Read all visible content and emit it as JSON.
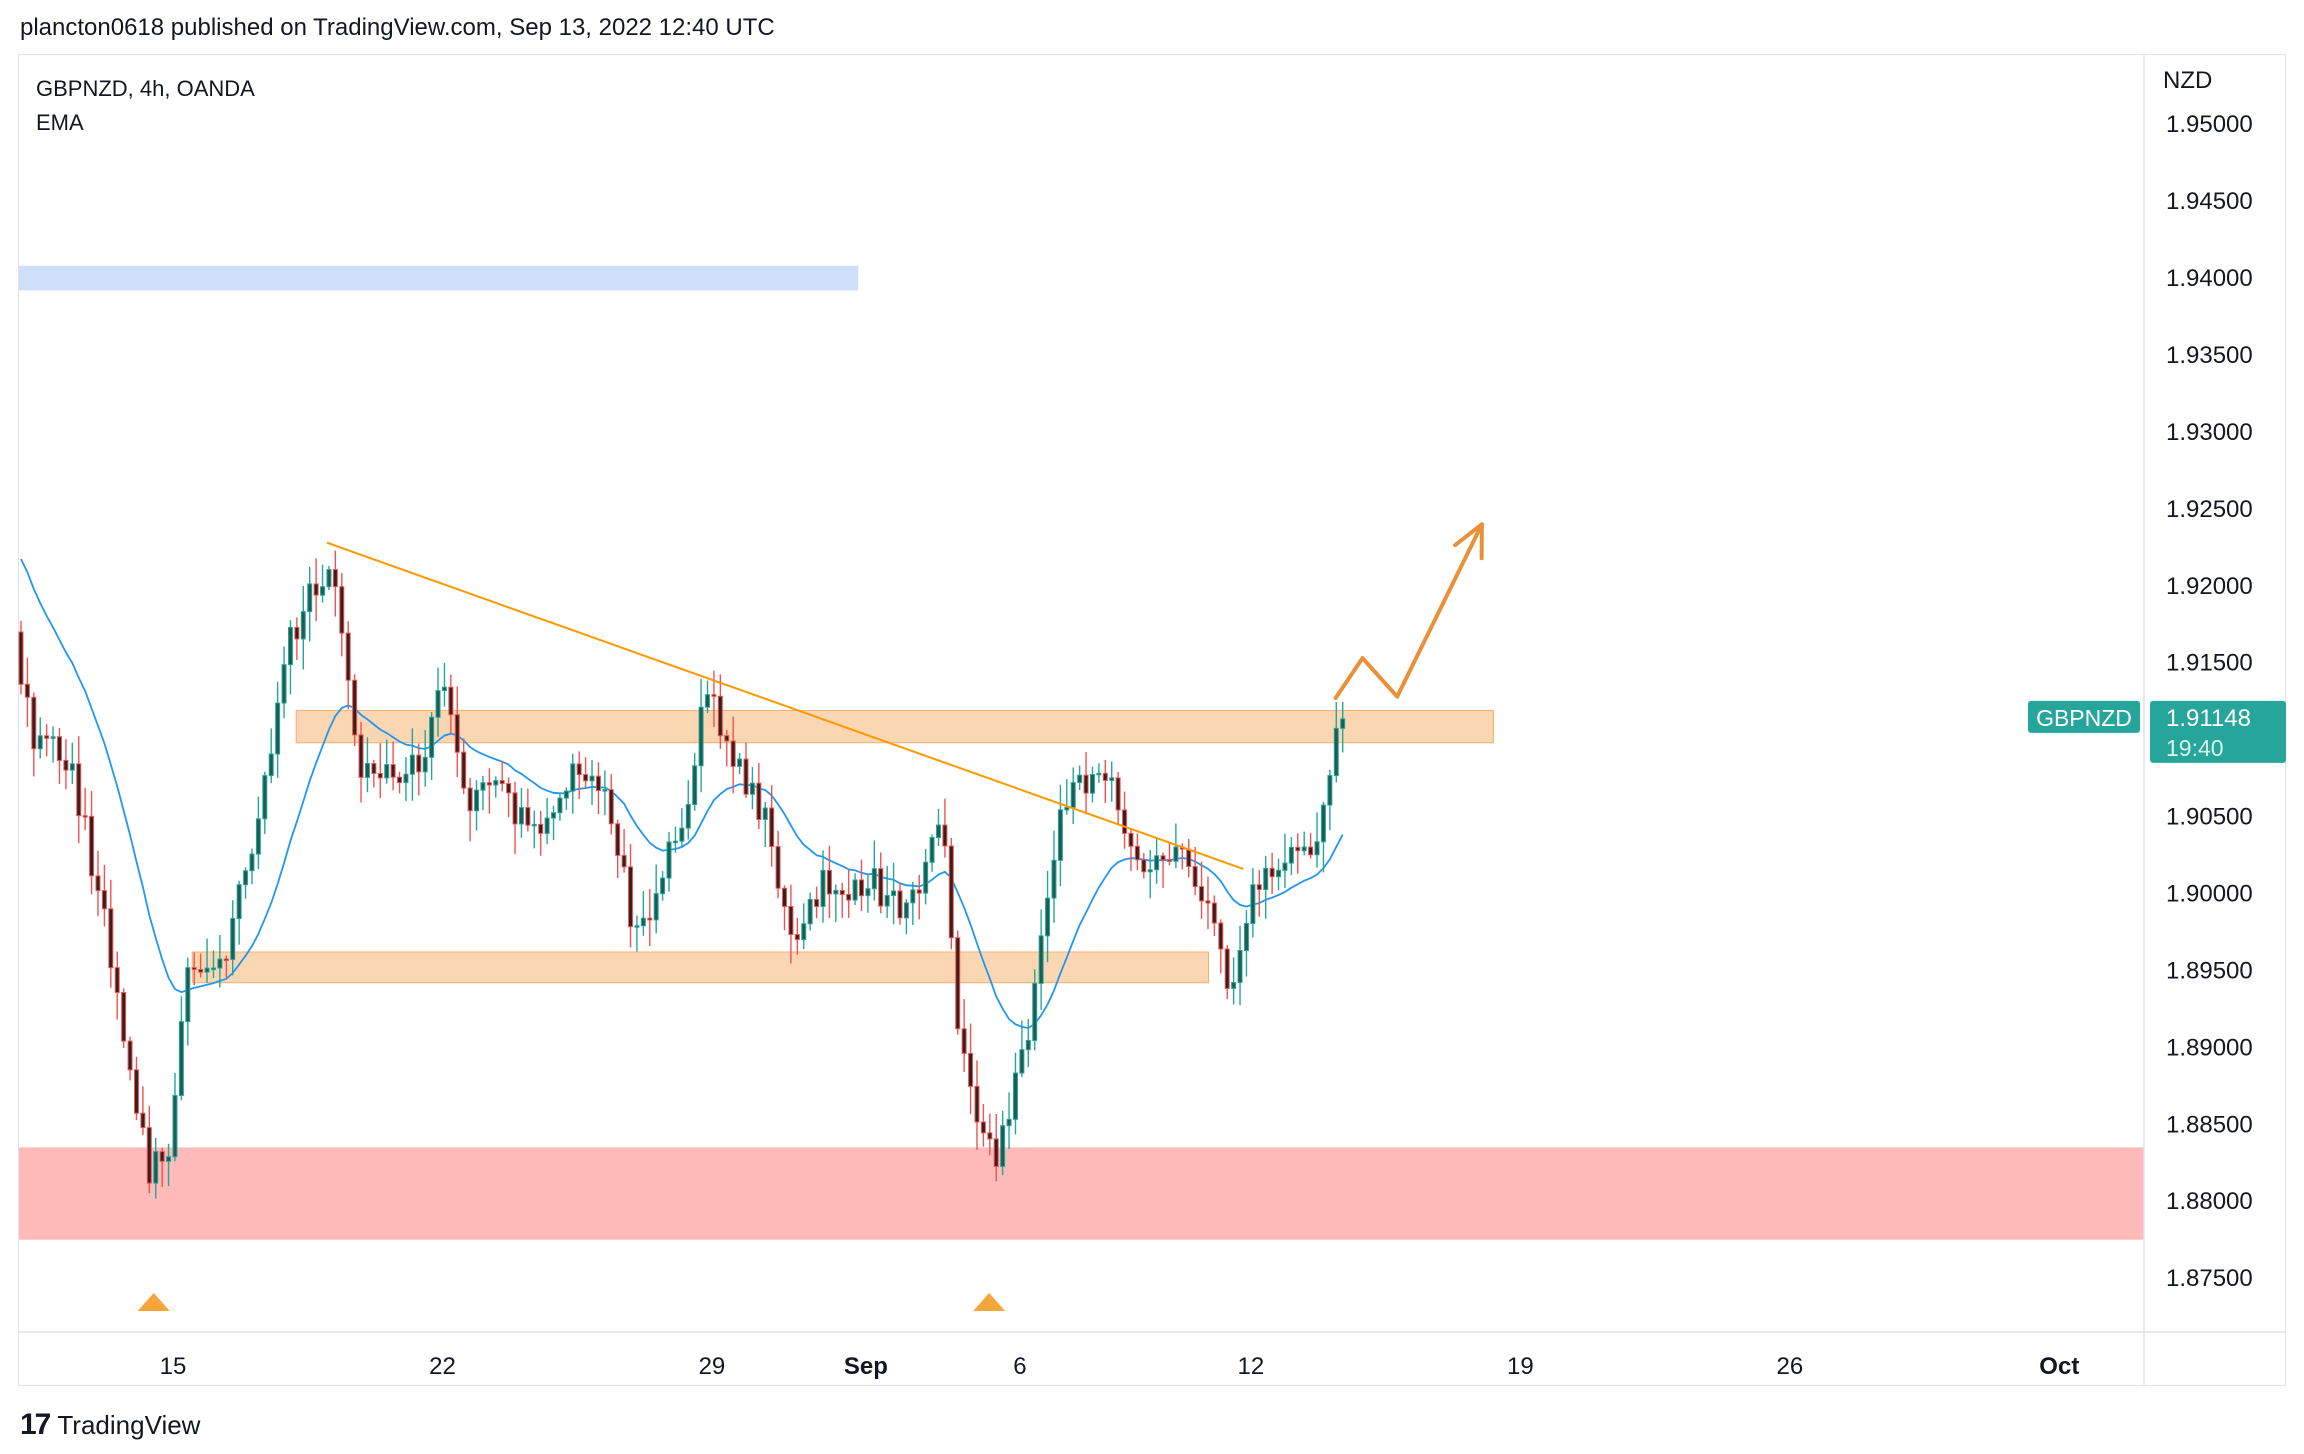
{
  "header": {
    "published_line": "plancton0618 published on TradingView.com, Sep 13, 2022 12:40 UTC"
  },
  "legend": {
    "symbol_line": "GBPNZD, 4h, OANDA",
    "indicator": "EMA"
  },
  "footer": {
    "brand": "TradingView",
    "logo_glyph": "17"
  },
  "colors": {
    "up": "#26a69a",
    "down": "#ef5350",
    "candle_body_up": "#1b5e56",
    "candle_body_down": "#3a1f1f",
    "ema": "#2196f3",
    "trendline": "#ff9800",
    "zone_orange": "#f8c89a",
    "zone_blue": "#c9dcf8",
    "zone_red": "#ffb3b3",
    "arrow": "#e8913a",
    "marker": "#f5a53a",
    "badge": "#26a69a"
  },
  "price_badge": {
    "symbol": "GBPNZD",
    "price": "1.91148",
    "countdown": "19:40"
  },
  "chart_data": {
    "type": "candlestick",
    "title": "GBPNZD, 4h, OANDA",
    "currency_label": "NZD",
    "y_range": [
      1.8715,
      1.9545
    ],
    "y_ticks": [
      "1.95000",
      "1.94500",
      "1.94000",
      "1.93500",
      "1.93000",
      "1.92500",
      "1.92000",
      "1.91500",
      "1.91000",
      "1.90500",
      "1.90000",
      "1.89500",
      "1.89000",
      "1.88500",
      "1.88000",
      "1.87500"
    ],
    "x_ticks": [
      {
        "label": "15",
        "bold": false,
        "day": 15
      },
      {
        "label": "22",
        "bold": false,
        "day": 22
      },
      {
        "label": "29",
        "bold": false,
        "day": 29
      },
      {
        "label": "Sep",
        "bold": true,
        "day": 33
      },
      {
        "label": "6",
        "bold": false,
        "day": 37
      },
      {
        "label": "12",
        "bold": false,
        "day": 43
      },
      {
        "label": "19",
        "bold": false,
        "day": 50
      },
      {
        "label": "26",
        "bold": false,
        "day": 57
      },
      {
        "label": "Oct",
        "bold": true,
        "day": 64
      }
    ],
    "x_range_days": [
      11.0,
      66.2
    ],
    "anchor_points": [
      [
        11.0,
        1.917
      ],
      [
        11.5,
        1.91
      ],
      [
        12.4,
        1.9085
      ],
      [
        13.3,
        1.899
      ],
      [
        14.0,
        1.889
      ],
      [
        14.5,
        1.882
      ],
      [
        15.0,
        1.883
      ],
      [
        15.5,
        1.895
      ],
      [
        16.5,
        1.896
      ],
      [
        17.3,
        1.905
      ],
      [
        18.1,
        1.916
      ],
      [
        18.7,
        1.92
      ],
      [
        19.4,
        1.92
      ],
      [
        20.0,
        1.908
      ],
      [
        20.7,
        1.908
      ],
      [
        21.5,
        1.908
      ],
      [
        22.1,
        1.914
      ],
      [
        22.7,
        1.906
      ],
      [
        23.5,
        1.907
      ],
      [
        24.5,
        1.904
      ],
      [
        25.5,
        1.908
      ],
      [
        26.4,
        1.907
      ],
      [
        27.1,
        1.897
      ],
      [
        27.8,
        1.901
      ],
      [
        28.5,
        1.906
      ],
      [
        29.0,
        1.914
      ],
      [
        29.5,
        1.91
      ],
      [
        30.5,
        1.905
      ],
      [
        31.2,
        1.897
      ],
      [
        32.1,
        1.901
      ],
      [
        32.7,
        1.9
      ],
      [
        33.2,
        1.901
      ],
      [
        33.9,
        1.899
      ],
      [
        34.5,
        1.901
      ],
      [
        35.1,
        1.906
      ],
      [
        35.5,
        1.892
      ],
      [
        36.0,
        1.886
      ],
      [
        36.5,
        1.882
      ],
      [
        36.9,
        1.887
      ],
      [
        37.4,
        1.892
      ],
      [
        37.8,
        1.9
      ],
      [
        38.2,
        1.906
      ],
      [
        38.6,
        1.907
      ],
      [
        39.1,
        1.908
      ],
      [
        39.6,
        1.907
      ],
      [
        40.0,
        1.902
      ],
      [
        40.7,
        1.902
      ],
      [
        41.4,
        1.902
      ],
      [
        42.1,
        1.899
      ],
      [
        42.6,
        1.893
      ],
      [
        43.1,
        1.9
      ],
      [
        43.6,
        1.902
      ],
      [
        44.5,
        1.902
      ],
      [
        45.1,
        1.906
      ],
      [
        45.4,
        1.9115
      ]
    ],
    "ema_period": 20,
    "zones": [
      {
        "name": "supply-zone-upper-blue",
        "from_day": 11.0,
        "to_day": 32.8,
        "price_top": 1.9408,
        "price_bottom": 1.9392,
        "color": "#c9dcf8"
      },
      {
        "name": "resistance-zone-orange",
        "from_day": 18.2,
        "to_day": 49.3,
        "price_top": 1.9119,
        "price_bottom": 1.9098,
        "color": "#f8c89a"
      },
      {
        "name": "support-zone-orange",
        "from_day": 15.5,
        "to_day": 41.9,
        "price_top": 1.8962,
        "price_bottom": 1.8942,
        "color": "#f8c89a"
      },
      {
        "name": "demand-zone-red",
        "from_day": 11.0,
        "to_day": 66.2,
        "price_top": 1.8835,
        "price_bottom": 1.8775,
        "color": "#ffb3b3"
      }
    ],
    "trendline": {
      "from": [
        19.0,
        1.9228
      ],
      "to": [
        42.8,
        1.9016
      ]
    },
    "projection_arrow": [
      [
        45.2,
        1.9127
      ],
      [
        45.9,
        1.9153
      ],
      [
        46.8,
        1.9128
      ],
      [
        49.0,
        1.924
      ]
    ],
    "markers_days": [
      14.5,
      36.2
    ],
    "seed": 1918
  }
}
